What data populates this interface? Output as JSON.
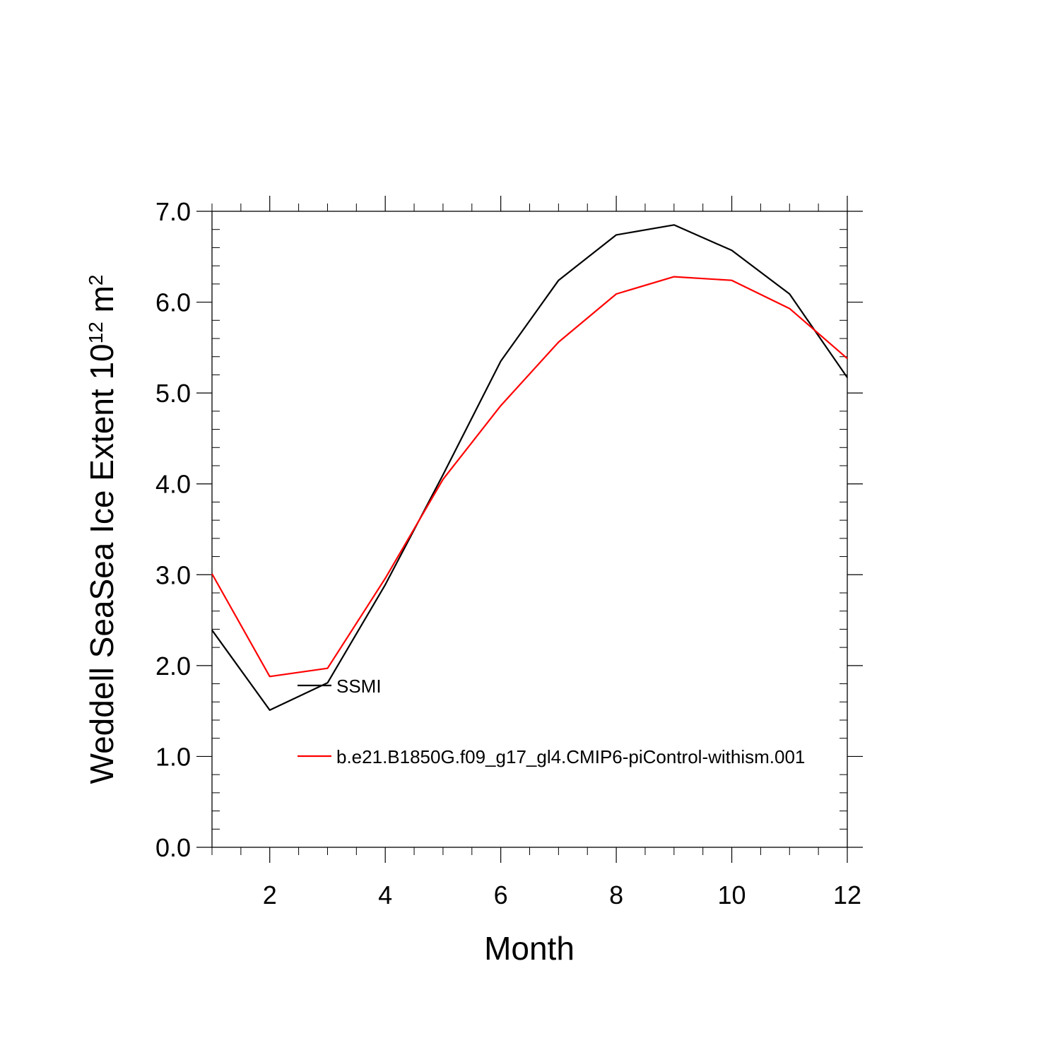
{
  "chart_data": {
    "type": "line",
    "title": "",
    "xlabel": "Month",
    "ylabel_main": "Weddell SeaSea Ice Extent 10",
    "ylabel_superscript": "12",
    "ylabel_unit": " m",
    "ylabel_unit_superscript": "2",
    "xlim": [
      1,
      12
    ],
    "ylim": [
      0,
      7
    ],
    "x_ticks": [
      2,
      4,
      6,
      8,
      10,
      12
    ],
    "x_tick_labels": [
      "2",
      "4",
      "6",
      "8",
      "10",
      "12"
    ],
    "y_ticks": [
      0,
      1,
      2,
      3,
      4,
      5,
      6,
      7
    ],
    "y_tick_labels": [
      "0.0",
      "1.0",
      "2.0",
      "3.0",
      "4.0",
      "5.0",
      "6.0",
      "7.0"
    ],
    "x": [
      1,
      2,
      3,
      4,
      5,
      6,
      7,
      8,
      9,
      10,
      11,
      12
    ],
    "grid": false,
    "legend_position": "inside-left",
    "series": [
      {
        "name": "SSMI",
        "color": "#000000",
        "values": [
          2.39,
          1.51,
          1.81,
          2.89,
          4.1,
          5.35,
          6.24,
          6.74,
          6.85,
          6.57,
          6.09,
          5.17
        ]
      },
      {
        "name": "b.e21.B1850G.f09_g17_gl4.CMIP6-piControl-withism.001",
        "color": "#ff0000",
        "values": [
          3.01,
          1.88,
          1.97,
          2.96,
          4.05,
          4.86,
          5.56,
          6.09,
          6.28,
          6.24,
          5.93,
          5.38
        ]
      }
    ]
  }
}
